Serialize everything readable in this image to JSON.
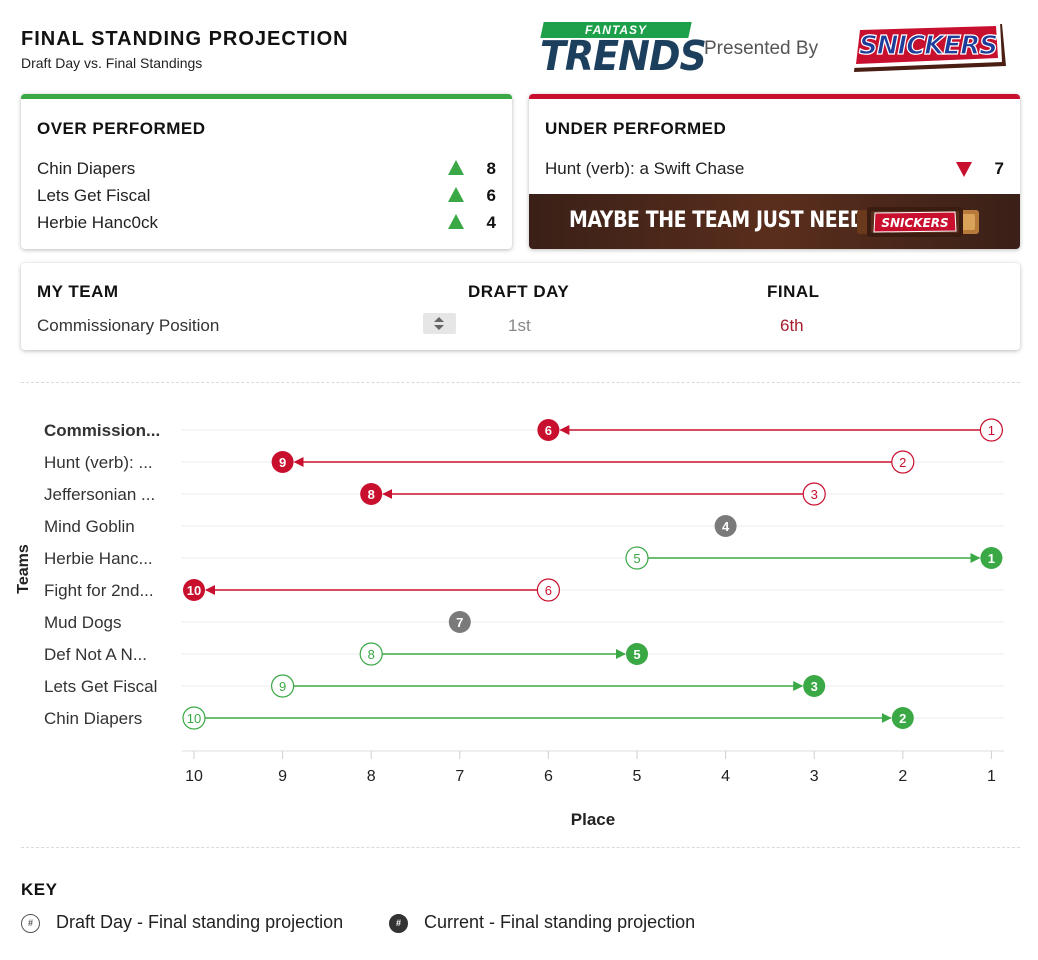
{
  "header": {
    "title": "FINAL STANDING PROJECTION",
    "subtitle": "Draft Day vs. Final Standings"
  },
  "brand": {
    "logo_top": "FANTASY",
    "logo_main": "TRENDS",
    "presented_by": "Presented By",
    "sponsor": "SNICKERS"
  },
  "over_performed": {
    "title": "OVER PERFORMED",
    "items": [
      {
        "name": "Chin Diapers",
        "value": "8"
      },
      {
        "name": "Lets Get Fiscal",
        "value": "6"
      },
      {
        "name": "Herbie Hanc0ck",
        "value": "4"
      }
    ]
  },
  "under_performed": {
    "title": "UNDER PERFORMED",
    "items": [
      {
        "name": "Hunt (verb): a Swift Chase",
        "value": "7"
      }
    ],
    "banner_text": "MAYBE THE TEAM JUST NEEDS A",
    "banner_bar": "SNICKERS"
  },
  "my_team": {
    "col_team": "MY TEAM",
    "col_draft": "DRAFT DAY",
    "col_final": "FINAL",
    "team_name": "Commissionary Position",
    "draft_day": "1st",
    "final": "6th"
  },
  "chart_data": {
    "type": "dumbbell",
    "xlabel": "Place",
    "ylabel": "Teams",
    "x_ticks": [
      "10",
      "9",
      "8",
      "7",
      "6",
      "5",
      "4",
      "3",
      "2",
      "1"
    ],
    "xlim": [
      10,
      1
    ],
    "teams": [
      {
        "label": "Commission...",
        "bold": true,
        "draft": 1,
        "final": 6
      },
      {
        "label": "Hunt (verb): ...",
        "draft": 2,
        "final": 9
      },
      {
        "label": "Jeffersonian ...",
        "draft": 3,
        "final": 8
      },
      {
        "label": "Mind Goblin",
        "draft": 4,
        "final": 4
      },
      {
        "label": "Herbie Hanc...",
        "draft": 5,
        "final": 1
      },
      {
        "label": "Fight for 2nd...",
        "draft": 6,
        "final": 10
      },
      {
        "label": "Mud Dogs",
        "draft": 7,
        "final": 7
      },
      {
        "label": "Def Not A N...",
        "draft": 8,
        "final": 5
      },
      {
        "label": "Lets Get Fiscal",
        "draft": 9,
        "final": 3
      },
      {
        "label": "Chin Diapers",
        "draft": 10,
        "final": 2
      }
    ],
    "colors": {
      "better": "#3aa845",
      "worse": "#c8102e",
      "same": "#7a7a7a"
    }
  },
  "key": {
    "title": "KEY",
    "draft_symbol": "#",
    "current_symbol": "#",
    "draft_label": "Draft Day - Final standing projection",
    "current_label": "Current - Final standing projection"
  }
}
